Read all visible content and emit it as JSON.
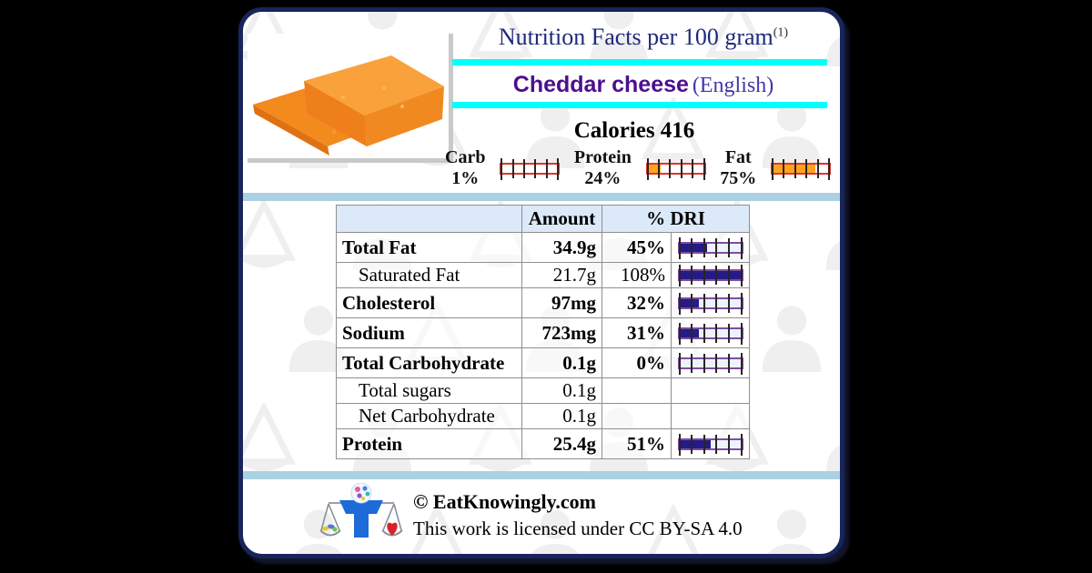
{
  "header": {
    "title": "Nutrition Facts per 100 gram",
    "title_superscript": "(1)",
    "food_name": "Cheddar cheese",
    "food_qualifier": "(English)",
    "calories_line": "Calories 416"
  },
  "macros": [
    {
      "name": "Carb",
      "percent_label": "1%",
      "percent": 1
    },
    {
      "name": "Protein",
      "percent_label": "24%",
      "percent": 24
    },
    {
      "name": "Fat",
      "percent_label": "75%",
      "percent": 75
    }
  ],
  "table": {
    "headers": {
      "amount": "Amount",
      "dri": "% DRI"
    },
    "rows": [
      {
        "name": "Total Fat",
        "amount": "34.9g",
        "dri": "45%",
        "percent": 45,
        "bold": true,
        "indent": false,
        "has_gauge": true
      },
      {
        "name": "Saturated Fat",
        "amount": "21.7g",
        "dri": "108%",
        "percent": 108,
        "bold": false,
        "indent": true,
        "has_gauge": true
      },
      {
        "name": "Cholesterol",
        "amount": "97mg",
        "dri": "32%",
        "percent": 32,
        "bold": true,
        "indent": false,
        "has_gauge": true
      },
      {
        "name": "Sodium",
        "amount": "723mg",
        "dri": "31%",
        "percent": 31,
        "bold": true,
        "indent": false,
        "has_gauge": true
      },
      {
        "name": "Total Carbohydrate",
        "amount": "0.1g",
        "dri": "0%",
        "percent": 0,
        "bold": true,
        "indent": false,
        "has_gauge": true
      },
      {
        "name": "Total sugars",
        "amount": "0.1g",
        "dri": "",
        "percent": null,
        "bold": false,
        "indent": true,
        "has_gauge": false
      },
      {
        "name": "Net Carbohydrate",
        "amount": "0.1g",
        "dri": "",
        "percent": null,
        "bold": false,
        "indent": true,
        "has_gauge": false
      },
      {
        "name": "Protein",
        "amount": "25.4g",
        "dri": "51%",
        "percent": 51,
        "bold": true,
        "indent": false,
        "has_gauge": true
      }
    ]
  },
  "footer": {
    "copyright": "© EatKnowingly.com",
    "license": "This work is licensed under CC BY-SA 4.0"
  },
  "icons": {
    "photo": "cheddar-cheese-photo",
    "logo": "balance-person-logo",
    "watermarks": [
      "scale-watermark-icon",
      "person-watermark-icon"
    ]
  },
  "colors": {
    "page_background": "#000000",
    "card_border": "#18255c",
    "accent_cyan": "#00ffff",
    "separator_blue": "#a9d1e2",
    "table_header_bg": "#dbe9f9",
    "title_navy": "#1e2a7a",
    "food_name_purple": "#4c0f8e",
    "food_qualifier_purple": "#4038a8",
    "macro_gauge_border_red": "#e3342b",
    "macro_gauge_fill_orange": "#ffa41c",
    "table_gauge_border_purple": "#7b4fa0",
    "table_gauge_fill_navy": "#241b86"
  }
}
